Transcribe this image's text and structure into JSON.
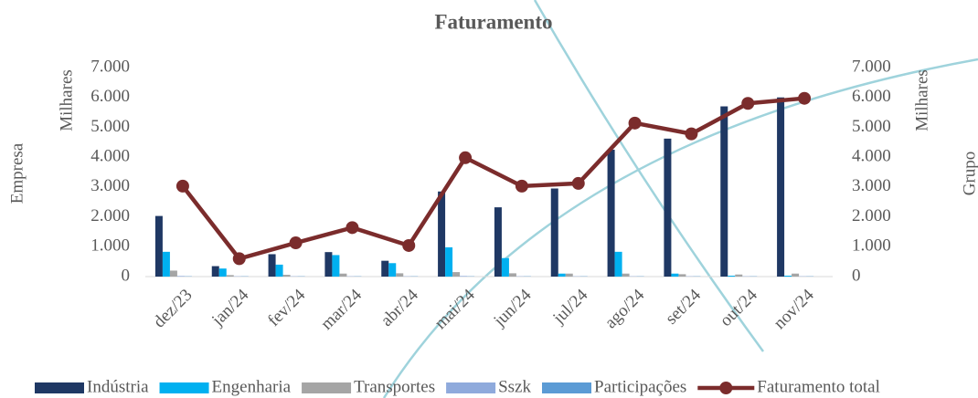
{
  "chart_data": {
    "type": "bar",
    "title": "Faturamento",
    "y_label": "Empresa",
    "y_unit": "Milhares",
    "y2_label": "Grupo",
    "y2_unit": "Milhares",
    "categories": [
      "dez/23",
      "jan/24",
      "fev/24",
      "mar/24",
      "abr/24",
      "mai/24",
      "jun/24",
      "jul/24",
      "ago/24",
      "set/24",
      "out/24",
      "nov/24"
    ],
    "series": [
      {
        "name": "Indústria",
        "type": "bar",
        "color": "#1f3864",
        "values": [
          2030,
          350,
          750,
          820,
          530,
          2850,
          2320,
          2950,
          4250,
          4620,
          5700,
          6000
        ]
      },
      {
        "name": "Engenharia",
        "type": "bar",
        "color": "#00b0f0",
        "values": [
          830,
          270,
          400,
          720,
          450,
          980,
          620,
          100,
          830,
          100,
          30,
          30
        ]
      },
      {
        "name": "Transportes",
        "type": "bar",
        "color": "#a5a5a5",
        "values": [
          200,
          50,
          60,
          100,
          110,
          150,
          110,
          100,
          100,
          80,
          70,
          100
        ]
      },
      {
        "name": "Sszk",
        "type": "bar",
        "color": "#8faadc",
        "values": [
          20,
          10,
          10,
          10,
          10,
          20,
          10,
          10,
          10,
          10,
          10,
          10
        ]
      },
      {
        "name": "Participações",
        "type": "bar",
        "color": "#5b9bd5",
        "values": [
          10,
          10,
          10,
          10,
          10,
          10,
          10,
          10,
          10,
          10,
          10,
          10
        ]
      },
      {
        "name": "Faturamento total",
        "type": "line",
        "axis": "y2",
        "color": "#7b2c2c",
        "values": [
          3030,
          600,
          1130,
          1640,
          1040,
          3980,
          3030,
          3120,
          5140,
          4780,
          5800,
          5970
        ]
      }
    ],
    "ylim": [
      0,
      7000
    ],
    "yticks": [
      0,
      {
        "value": 1000,
        "label": "1.000"
      },
      {
        "value": 2000,
        "label": "2.000"
      },
      {
        "value": 3000,
        "label": "3.000"
      },
      {
        "value": 4000,
        "label": "4.000"
      },
      {
        "value": 5000,
        "label": "5.000"
      },
      {
        "value": 6000,
        "label": "6.000"
      },
      {
        "value": 7000,
        "label": "7.000"
      }
    ],
    "y2lim": [
      0,
      7000
    ],
    "y2ticks": [
      0,
      {
        "value": 1000,
        "label": "1.000"
      },
      {
        "value": 2000,
        "label": "2.000"
      },
      {
        "value": 3000,
        "label": "3.000"
      },
      {
        "value": 4000,
        "label": "4.000"
      },
      {
        "value": 5000,
        "label": "5.000"
      },
      {
        "value": 6000,
        "label": "6.000"
      },
      {
        "value": 7000,
        "label": "7.000"
      }
    ],
    "legend": "bottom"
  }
}
